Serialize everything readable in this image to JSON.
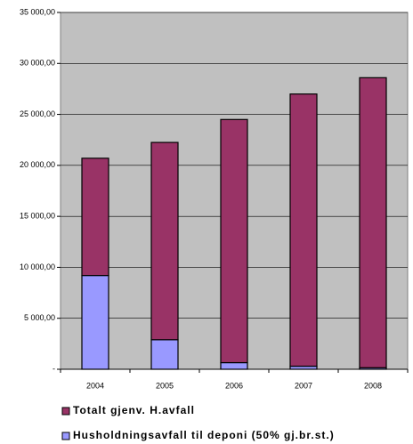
{
  "chart_data": {
    "type": "bar",
    "stacked": true,
    "categories": [
      "2004",
      "2005",
      "2006",
      "2007",
      "2008"
    ],
    "series": [
      {
        "name": "Husholdningsavfall til deponi (50% gj.br.st.)",
        "color": "#9999ff",
        "values": [
          9200,
          2900,
          650,
          300,
          150
        ]
      },
      {
        "name": "Totalt gjenv. H.avfall",
        "color": "#993366",
        "values": [
          11500,
          19350,
          23850,
          26700,
          28450
        ]
      }
    ],
    "ylim": [
      0,
      35000
    ],
    "yticks": [
      {
        "value": 0,
        "label": "-"
      },
      {
        "value": 5000,
        "label": "5 000,00"
      },
      {
        "value": 10000,
        "label": "10 000,00"
      },
      {
        "value": 15000,
        "label": "15 000,00"
      },
      {
        "value": 20000,
        "label": "20 000,00"
      },
      {
        "value": 25000,
        "label": "25 000,00"
      },
      {
        "value": 30000,
        "label": "30 000,00"
      },
      {
        "value": 35000,
        "label": "35 000,00"
      }
    ],
    "grid": true,
    "legend": "bottom"
  }
}
